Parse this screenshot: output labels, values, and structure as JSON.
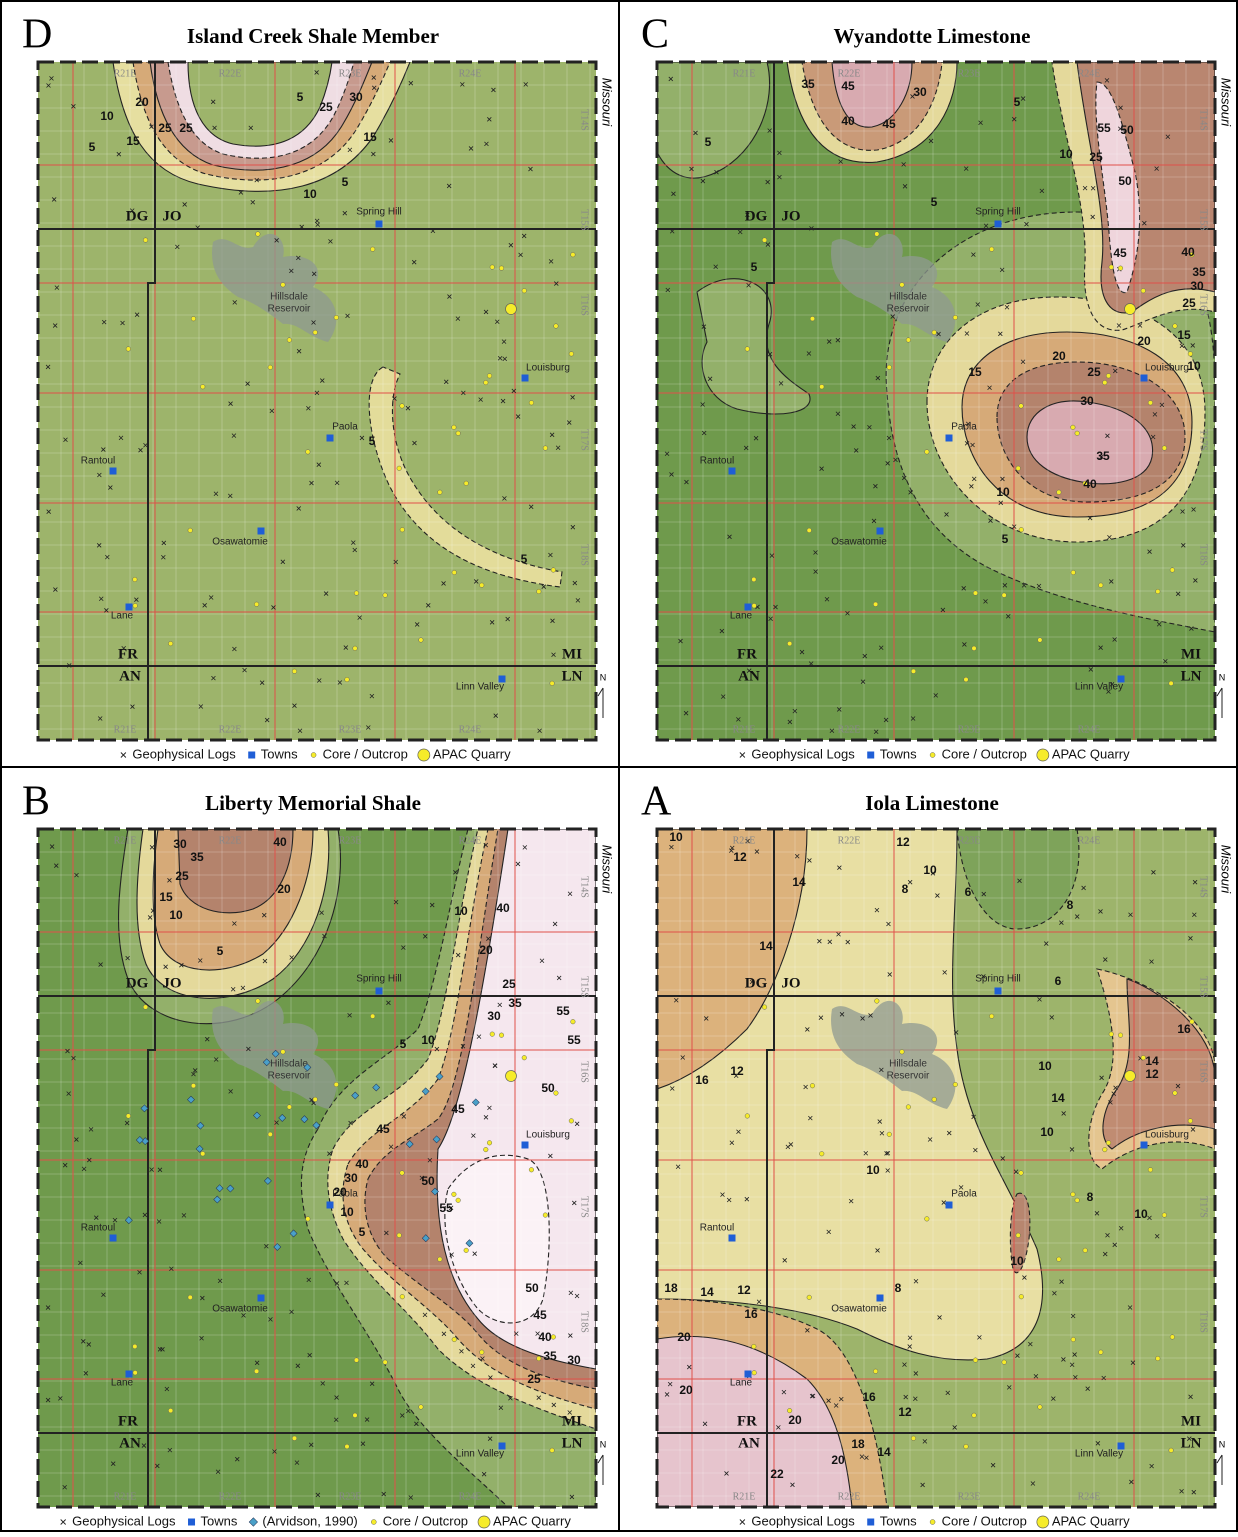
{
  "panels": [
    {
      "letter": "D",
      "title": "Island Creek Shale Member",
      "state": "Missouri",
      "north": "N",
      "reservoir": [
        "Hillsdale",
        "Reservoir"
      ],
      "ranges": [
        "R21E",
        "R22E",
        "R23E",
        "R24E"
      ],
      "townships": [
        "T14S",
        "T15S",
        "T16S",
        "T17S",
        "T18S"
      ],
      "counties": [
        "DG",
        "JO",
        "FR",
        "MI",
        "AN",
        "LN"
      ],
      "towns": [
        "Spring Hill",
        "Louisburg",
        "Paola",
        "Rantoul",
        "Osawatomie",
        "Lane",
        "Linn Valley"
      ],
      "contour_labels": [
        20,
        10,
        15,
        5,
        25,
        25,
        5,
        25,
        30,
        15,
        5,
        10,
        5,
        5
      ],
      "legend": [
        "Geophysical Logs",
        "Towns",
        "Core / Outcrop",
        "APAC Quarry"
      ]
    },
    {
      "letter": "C",
      "title": "Wyandotte Limestone",
      "state": "Missouri",
      "north": "N",
      "reservoir": [
        "Hillsdale",
        "Reservoir"
      ],
      "ranges": [
        "R21E",
        "R22E",
        "R23E",
        "R24E"
      ],
      "townships": [
        "T14S",
        "T15S",
        "T16S",
        "T17S",
        "T18S"
      ],
      "counties": [
        "DG",
        "JO",
        "FR",
        "MI",
        "AN",
        "LN"
      ],
      "towns": [
        "Spring Hill",
        "Louisburg",
        "Paola",
        "Rantoul",
        "Osawatomie",
        "Lane",
        "Linn Valley"
      ],
      "contour_labels": [
        35,
        45,
        40,
        45,
        30,
        5,
        5,
        5,
        5,
        55,
        50,
        25,
        10,
        50,
        45,
        40,
        35,
        30,
        25,
        15,
        20,
        10,
        20,
        15,
        25,
        30,
        35,
        40,
        10,
        5
      ],
      "legend": [
        "Geophysical Logs",
        "Towns",
        "Core / Outcrop",
        "APAC Quarry"
      ]
    },
    {
      "letter": "B",
      "title": "Liberty Memorial Shale",
      "state": "Missouri",
      "north": "N",
      "reservoir": [
        "Hillsdale",
        "Reservoir"
      ],
      "ranges": [
        "R21E",
        "R22E",
        "R23E",
        "R24E"
      ],
      "townships": [
        "T14S",
        "T15S",
        "T16S",
        "T17S",
        "T18S"
      ],
      "counties": [
        "DG",
        "JO",
        "FR",
        "MI",
        "AN",
        "LN"
      ],
      "towns": [
        "Spring Hill",
        "Louisburg",
        "Paola",
        "Rantoul",
        "Osawatomie",
        "Lane",
        "Linn Valley"
      ],
      "contour_labels": [
        30,
        35,
        40,
        25,
        20,
        15,
        10,
        5,
        10,
        40,
        20,
        25,
        35,
        30,
        55,
        55,
        10,
        5,
        50,
        45,
        45,
        40,
        30,
        20,
        10,
        5,
        50,
        55,
        50,
        45,
        40,
        35,
        30,
        25
      ],
      "legend": [
        "Geophysical Logs",
        "Towns",
        "(Arvidson, 1990)",
        "Core / Outcrop",
        "APAC Quarry"
      ]
    },
    {
      "letter": "A",
      "title": "Iola Limestone",
      "state": "Missouri",
      "north": "N",
      "reservoir": [
        "Hillsdale",
        "Reservoir"
      ],
      "ranges": [
        "R21E",
        "R22E",
        "R23E",
        "R24E"
      ],
      "townships": [
        "T14S",
        "T15S",
        "T16S",
        "T17S",
        "T18S"
      ],
      "counties": [
        "DG",
        "JO",
        "FR",
        "MI",
        "AN",
        "LN"
      ],
      "towns": [
        "Spring Hill",
        "Louisburg",
        "Paola",
        "Rantoul",
        "Osawatomie",
        "Lane",
        "Linn Valley"
      ],
      "contour_labels": [
        10,
        12,
        14,
        14,
        12,
        10,
        8,
        6,
        8,
        6,
        16,
        14,
        12,
        10,
        14,
        10,
        16,
        12,
        10,
        8,
        10,
        10,
        8,
        18,
        14,
        12,
        16,
        20,
        20,
        16,
        12,
        20,
        18,
        14,
        20,
        22
      ],
      "legend": [
        "Geophysical Logs",
        "Towns",
        "Core / Outcrop",
        "APAC Quarry"
      ]
    }
  ]
}
